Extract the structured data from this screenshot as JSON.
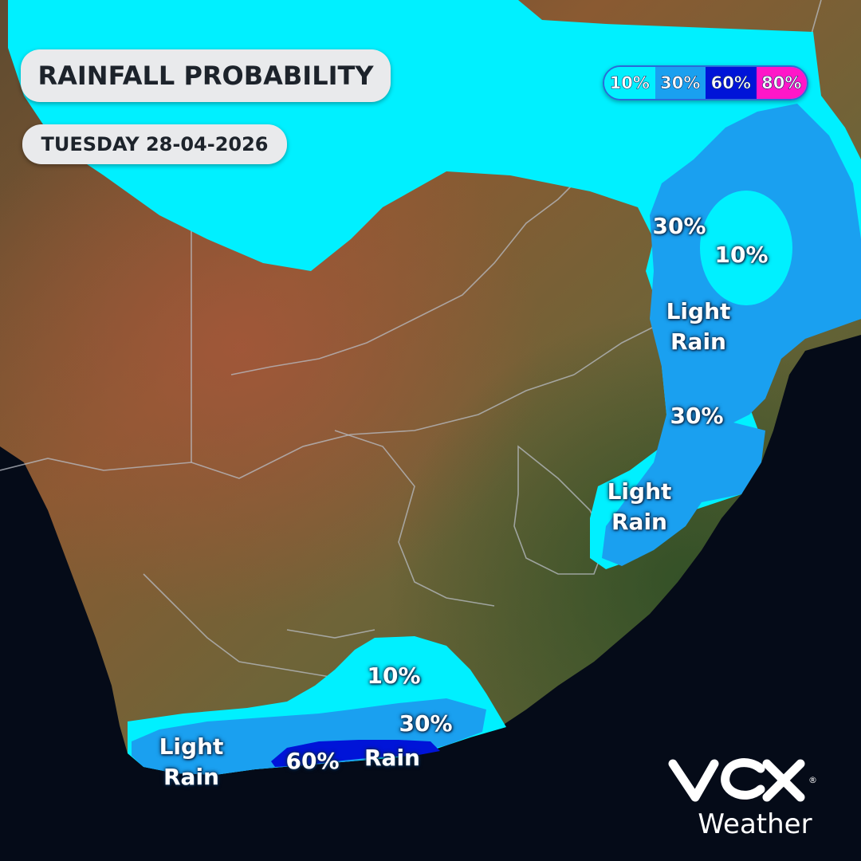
{
  "header": {
    "title": "RAINFALL PROBABILITY",
    "date": "TUESDAY 28-04-2026"
  },
  "legend": [
    {
      "label": "10%",
      "color": "#00f0ff",
      "text_color": "#ffffff"
    },
    {
      "label": "30%",
      "color": "#1aa0f0",
      "text_color": "#ffffff"
    },
    {
      "label": "60%",
      "color": "#0014d8",
      "text_color": "#ffffff"
    },
    {
      "label": "80%",
      "color": "#ff16c8",
      "text_color": "#ffffff"
    }
  ],
  "map_labels": {
    "north_30": "30%",
    "north_10": "10%",
    "light_rain_1": [
      "Light",
      "Rain"
    ],
    "east_30": "30%",
    "light_rain_2": [
      "Light",
      "Rain"
    ],
    "south_10": "10%",
    "south_30": "30%",
    "light_rain_3": [
      "Light",
      "Rain"
    ],
    "south_60": "60%",
    "south_rain": "Rain"
  },
  "branding": {
    "wordmark": "Weather",
    "logo_name": "vox-logo"
  },
  "colors": {
    "ocean": "#050b18",
    "land": "#8a6a3e",
    "prob_10": "#00f0ff",
    "prob_30": "#1aa0f0",
    "prob_60": "#0014d8",
    "prob_80": "#ff16c8",
    "pill_bg": "#e9eaec"
  }
}
